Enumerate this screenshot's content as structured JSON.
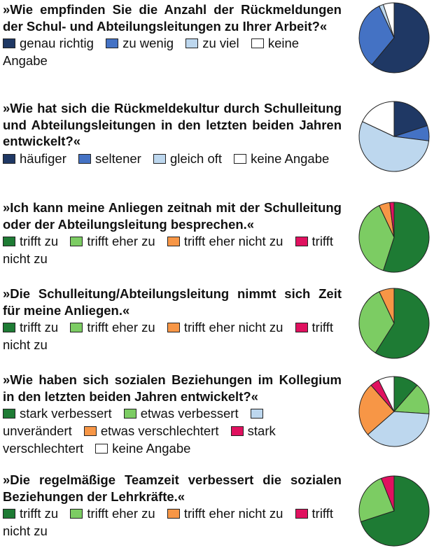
{
  "chart_data": [
    {
      "type": "pie",
      "title": "»Wie empfinden Sie die Anzahl der Rückmeldungen der Schul- und Abteilungsleitungen zu Ihrer Arbeit?«",
      "categories": [
        "genau richtig",
        "zu wenig",
        "zu viel",
        "keine Angabe"
      ],
      "values": [
        61,
        32,
        2,
        5
      ],
      "colors": [
        "#1f3864",
        "#4472c4",
        "#bdd7ee",
        "#ffffff"
      ]
    },
    {
      "type": "pie",
      "title": "»Wie hat sich die Rückmeldekultur durch Schulleitung und Abteilungsleitungen in den letzten beiden Jahren entwickelt?«",
      "categories": [
        "häufiger",
        "seltener",
        "gleich oft",
        "keine Angabe"
      ],
      "values": [
        20,
        7,
        55,
        18
      ],
      "colors": [
        "#1f3864",
        "#4472c4",
        "#bdd7ee",
        "#ffffff"
      ]
    },
    {
      "type": "pie",
      "title": "»Ich kann meine Anliegen zeitnah mit der Schulleitung oder der Abteilungsleitung besprechen.«",
      "categories": [
        "trifft zu",
        "trifft eher zu",
        "trifft eher nicht zu",
        "trifft nicht zu"
      ],
      "values": [
        55,
        38,
        5,
        2
      ],
      "colors": [
        "#1e7b34",
        "#7ccc63",
        "#f79646",
        "#e0115f"
      ]
    },
    {
      "type": "pie",
      "title": "»Die Schulleitung/Abteilungsleitung nimmt sich Zeit für meine Anliegen.«",
      "categories": [
        "trifft zu",
        "trifft eher zu",
        "trifft eher nicht zu",
        "trifft nicht zu"
      ],
      "values": [
        59,
        34,
        7,
        0
      ],
      "colors": [
        "#1e7b34",
        "#7ccc63",
        "#f79646",
        "#e0115f"
      ]
    },
    {
      "type": "pie",
      "title": "»Wie haben sich sozialen Beziehungen im Kollegium in den letzten beiden Jahren entwickelt?«",
      "categories": [
        "stark verbessert",
        "etwas verbessert",
        "unverändert",
        "etwas verschlechtert",
        "stark verschlechtert",
        "keine Angabe"
      ],
      "values": [
        11,
        14,
        36,
        24,
        4,
        7
      ],
      "colors": [
        "#1e7b34",
        "#7ccc63",
        "#bdd7ee",
        "#f79646",
        "#e0115f",
        "#ffffff"
      ]
    },
    {
      "type": "pie",
      "title": "»Die regelmäßige Teamzeit verbessert die sozialen Beziehungen der Lehrkräfte.«",
      "categories": [
        "trifft zu",
        "trifft eher zu",
        "trifft eher nicht zu",
        "trifft nicht zu"
      ],
      "values": [
        70,
        24,
        0,
        6
      ],
      "colors": [
        "#1e7b34",
        "#7ccc63",
        "#f79646",
        "#e0115f"
      ]
    }
  ]
}
